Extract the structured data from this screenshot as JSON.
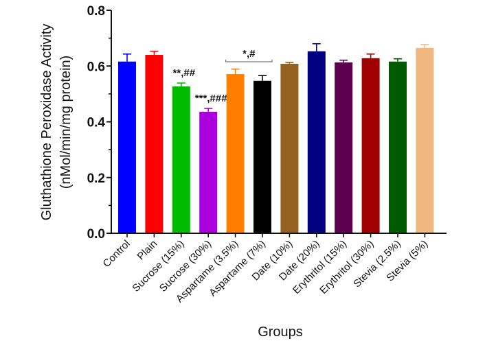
{
  "chart_data": {
    "type": "bar",
    "title": "",
    "xlabel": "Groups",
    "ylabel_line1": "Gluthathione Peroxidase Activity",
    "ylabel_line2": "(nMol/min/mg protein)",
    "ylim": [
      0,
      0.8
    ],
    "yticks": [
      0.0,
      0.2,
      0.4,
      0.6,
      0.8
    ],
    "ytick_labels": [
      "0.0",
      "0.2",
      "0.4",
      "0.6",
      "0.8"
    ],
    "minor_yticks": [
      0.1,
      0.3,
      0.5,
      0.7
    ],
    "grid": false,
    "categories": [
      "Control",
      "Plain",
      "Sucrose (15%)",
      "Sucrose (30%)",
      "Aspartame (3.5%)",
      "Aspartame (7%)",
      "Date (10%)",
      "Date (20%)",
      "Erythritol (15%)",
      "Erythritol (30%)",
      "Stevia (2.5%)",
      "Stevia (5%)"
    ],
    "values": [
      0.616,
      0.64,
      0.527,
      0.436,
      0.571,
      0.547,
      0.608,
      0.653,
      0.613,
      0.628,
      0.616,
      0.665
    ],
    "errors": [
      0.027,
      0.013,
      0.012,
      0.012,
      0.018,
      0.019,
      0.005,
      0.027,
      0.008,
      0.015,
      0.01,
      0.012
    ],
    "colors": [
      "#0000ff",
      "#ff0000",
      "#00bb00",
      "#aa00dd",
      "#ff8000",
      "#000000",
      "#946120",
      "#000080",
      "#5e0050",
      "#a00000",
      "#005a00",
      "#f0b880"
    ],
    "annotations": [
      {
        "text": "**,##",
        "category_index": 2
      },
      {
        "text": "***,###",
        "category_index": 3
      },
      {
        "text": "*,#",
        "bracket_from": 4,
        "bracket_to": 5
      }
    ]
  }
}
